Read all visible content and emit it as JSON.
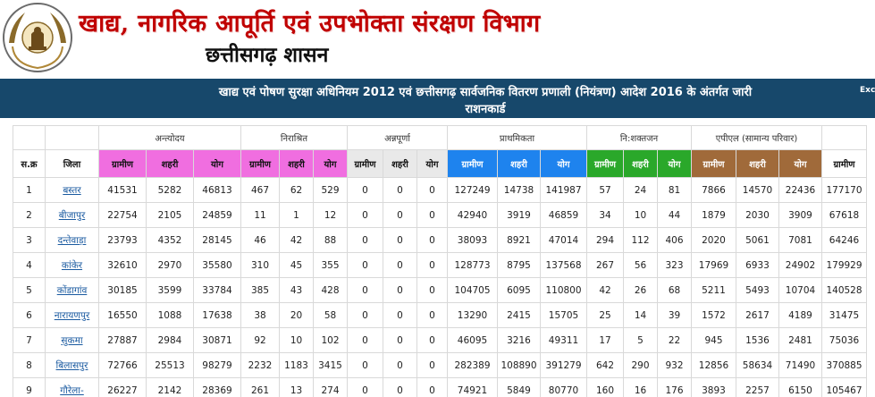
{
  "header": {
    "title": "खाद्य, नागरिक आपूर्ति एवं उपभोक्ता संरक्षण विभाग",
    "subtitle": "छत्तीसगढ़ शासन"
  },
  "banner": {
    "line1": "खाद्य एवं पोषण सुरक्षा अधिनियम 2012 एवं छत्तीसगढ़ सार्वजनिक वितरण प्रणाली (नियंत्रण) आदेश 2016 के अंतर्गत जारी",
    "line2": "राशनकार्ड",
    "export_label": "Exc"
  },
  "colors": {
    "banner": "#17486b",
    "antyodaya": "#f06ee0",
    "pradhamikta": "#1e83ee",
    "nishaktjan": "#2aa82a",
    "apl": "#a06a3a",
    "title": "#c00000"
  },
  "table": {
    "group_headers": [
      "अन्त्योदय",
      "निराश्रित",
      "अन्नपूर्णा",
      "प्राथमिकता",
      "नि:शक्तजन",
      "एपीएल (सामान्य परिवार)"
    ],
    "col_serial": "स.क्र",
    "col_district": "जिला",
    "sub_labels": {
      "rural": "ग्रामीण",
      "urban": "शहरी",
      "total": "योग"
    },
    "rows": [
      {
        "sn": "1",
        "district": "बस्तर",
        "v": [
          "41531",
          "5282",
          "46813",
          "467",
          "62",
          "529",
          "0",
          "0",
          "0",
          "127249",
          "14738",
          "141987",
          "57",
          "24",
          "81",
          "7866",
          "14570",
          "22436",
          "177170"
        ]
      },
      {
        "sn": "2",
        "district": "बीजापुर",
        "v": [
          "22754",
          "2105",
          "24859",
          "11",
          "1",
          "12",
          "0",
          "0",
          "0",
          "42940",
          "3919",
          "46859",
          "34",
          "10",
          "44",
          "1879",
          "2030",
          "3909",
          "67618"
        ]
      },
      {
        "sn": "3",
        "district": "दन्तेवाड़ा",
        "v": [
          "23793",
          "4352",
          "28145",
          "46",
          "42",
          "88",
          "0",
          "0",
          "0",
          "38093",
          "8921",
          "47014",
          "294",
          "112",
          "406",
          "2020",
          "5061",
          "7081",
          "64246"
        ]
      },
      {
        "sn": "4",
        "district": "कांकेर",
        "v": [
          "32610",
          "2970",
          "35580",
          "310",
          "45",
          "355",
          "0",
          "0",
          "0",
          "128773",
          "8795",
          "137568",
          "267",
          "56",
          "323",
          "17969",
          "6933",
          "24902",
          "179929"
        ]
      },
      {
        "sn": "5",
        "district": "कोंडागांव",
        "v": [
          "30185",
          "3599",
          "33784",
          "385",
          "43",
          "428",
          "0",
          "0",
          "0",
          "104705",
          "6095",
          "110800",
          "42",
          "26",
          "68",
          "5211",
          "5493",
          "10704",
          "140528"
        ]
      },
      {
        "sn": "6",
        "district": "नारायणपुर",
        "v": [
          "16550",
          "1088",
          "17638",
          "38",
          "20",
          "58",
          "0",
          "0",
          "0",
          "13290",
          "2415",
          "15705",
          "25",
          "14",
          "39",
          "1572",
          "2617",
          "4189",
          "31475"
        ]
      },
      {
        "sn": "7",
        "district": "सुकमा",
        "v": [
          "27887",
          "2984",
          "30871",
          "92",
          "10",
          "102",
          "0",
          "0",
          "0",
          "46095",
          "3216",
          "49311",
          "17",
          "5",
          "22",
          "945",
          "1536",
          "2481",
          "75036"
        ]
      },
      {
        "sn": "8",
        "district": "बिलासपुर",
        "v": [
          "72766",
          "25513",
          "98279",
          "2232",
          "1183",
          "3415",
          "0",
          "0",
          "0",
          "282389",
          "108890",
          "391279",
          "642",
          "290",
          "932",
          "12856",
          "58634",
          "71490",
          "370885"
        ]
      },
      {
        "sn": "9",
        "district": "गौरेला-",
        "v": [
          "26227",
          "2142",
          "28369",
          "261",
          "13",
          "274",
          "0",
          "0",
          "0",
          "74921",
          "5849",
          "80770",
          "160",
          "16",
          "176",
          "3893",
          "2257",
          "6150",
          "105467"
        ]
      }
    ]
  }
}
